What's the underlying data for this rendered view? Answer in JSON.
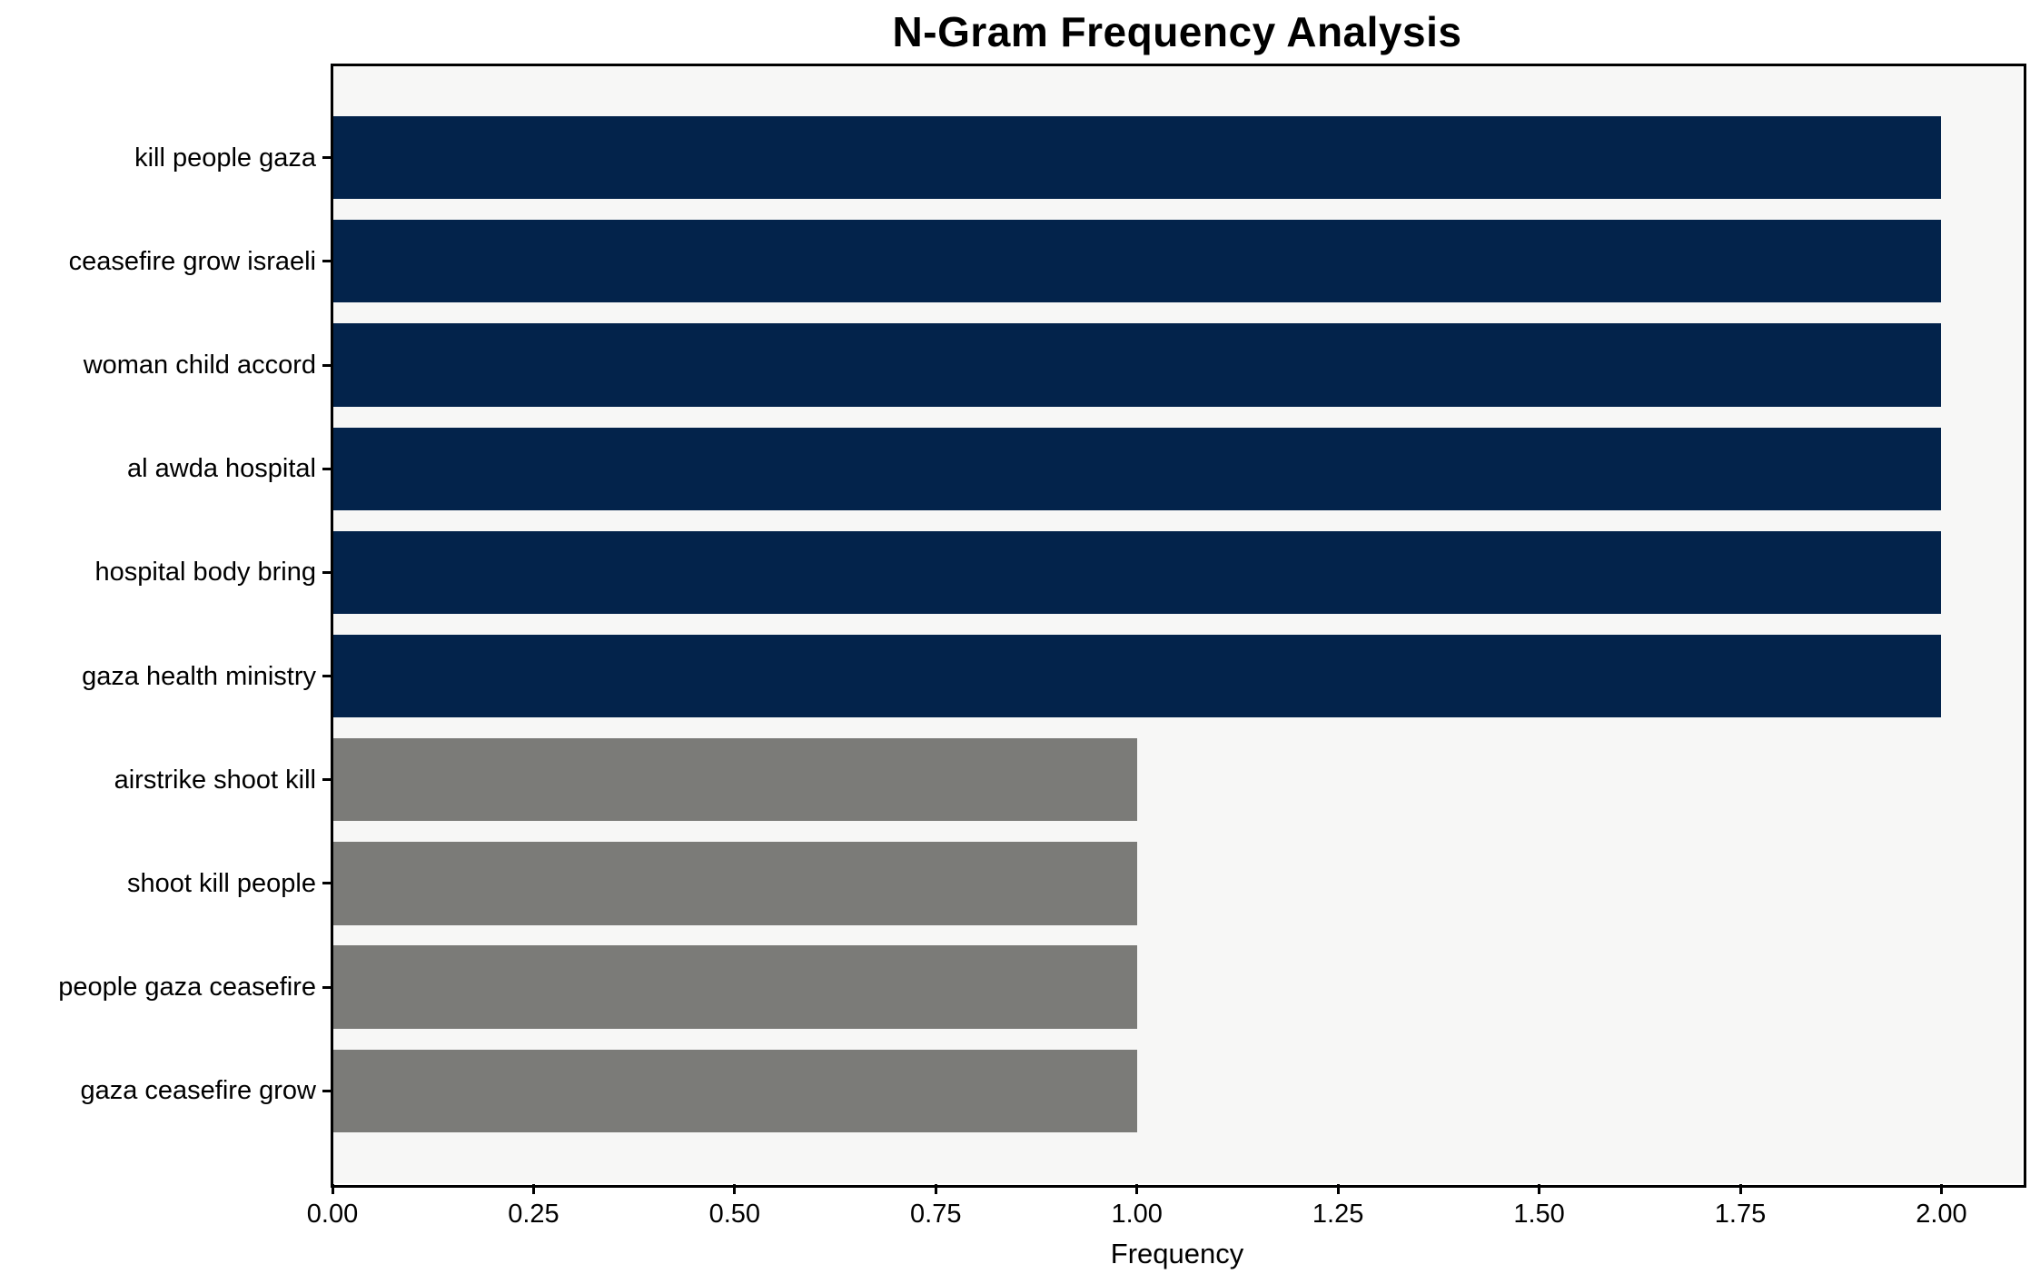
{
  "title": "N-Gram Frequency Analysis",
  "chart_data": {
    "type": "bar",
    "orientation": "horizontal",
    "title": "N-Gram Frequency Analysis",
    "xlabel": "Frequency",
    "ylabel": "",
    "categories": [
      "kill people gaza",
      "ceasefire grow israeli",
      "woman child accord",
      "al awda hospital",
      "hospital body bring",
      "gaza health ministry",
      "airstrike shoot kill",
      "shoot kill people",
      "people gaza ceasefire",
      "gaza ceasefire grow"
    ],
    "values": [
      2,
      2,
      2,
      2,
      2,
      2,
      1,
      1,
      1,
      1
    ],
    "bar_colors": [
      "#03234B",
      "#03234B",
      "#03234B",
      "#03234B",
      "#03234B",
      "#03234B",
      "#7B7B78",
      "#7B7B78",
      "#7B7B78",
      "#7B7B78"
    ],
    "x_ticks": [
      "0.00",
      "0.25",
      "0.50",
      "0.75",
      "1.00",
      "1.25",
      "1.50",
      "1.75",
      "2.00"
    ],
    "x_tick_values": [
      0,
      0.25,
      0.5,
      0.75,
      1.0,
      1.25,
      1.5,
      1.75,
      2.0
    ],
    "xlim": [
      0,
      2.1
    ],
    "grid": false,
    "legend": null
  },
  "colors": {
    "navy_bar": "#03234B",
    "gray_bar": "#7B7B78",
    "plot_background": "#F7F7F6",
    "figure_background": "#FFFFFF",
    "spine": "#000000",
    "text": "#000000"
  }
}
